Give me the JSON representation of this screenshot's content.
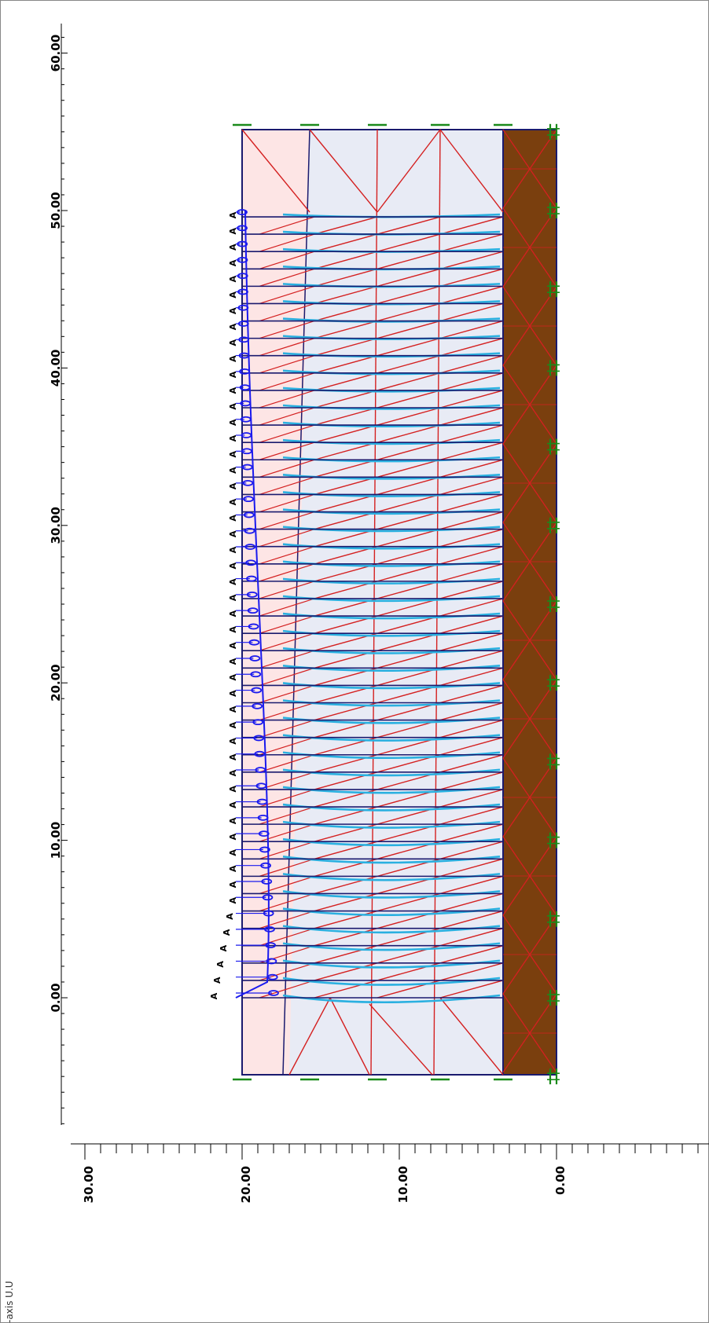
{
  "view": {
    "axis_note": "-axis U.U"
  },
  "left_axis": {
    "ticks": [
      "60.00",
      "50.00",
      "40.00",
      "30.00",
      "20.00",
      "10.00",
      "0.00"
    ],
    "values": [
      60,
      50,
      40,
      30,
      20,
      10,
      0
    ]
  },
  "bottom_axis": {
    "ticks": [
      "30.00",
      "20.00",
      "10.00",
      "0.00"
    ],
    "values": [
      30,
      20,
      10,
      0
    ]
  },
  "model": {
    "colors": {
      "backfill": "#fde5e5",
      "soil": "#e8ebf5",
      "wall": "#7a3f0e",
      "boundary": "#1a1a6e",
      "mesh": "#d42020",
      "reinforcement": "#2ab0e0",
      "anchor": "#1a1aee",
      "fixity": "#1a8a1a"
    },
    "anchor_label": "A",
    "reinforcement_count": 46
  }
}
